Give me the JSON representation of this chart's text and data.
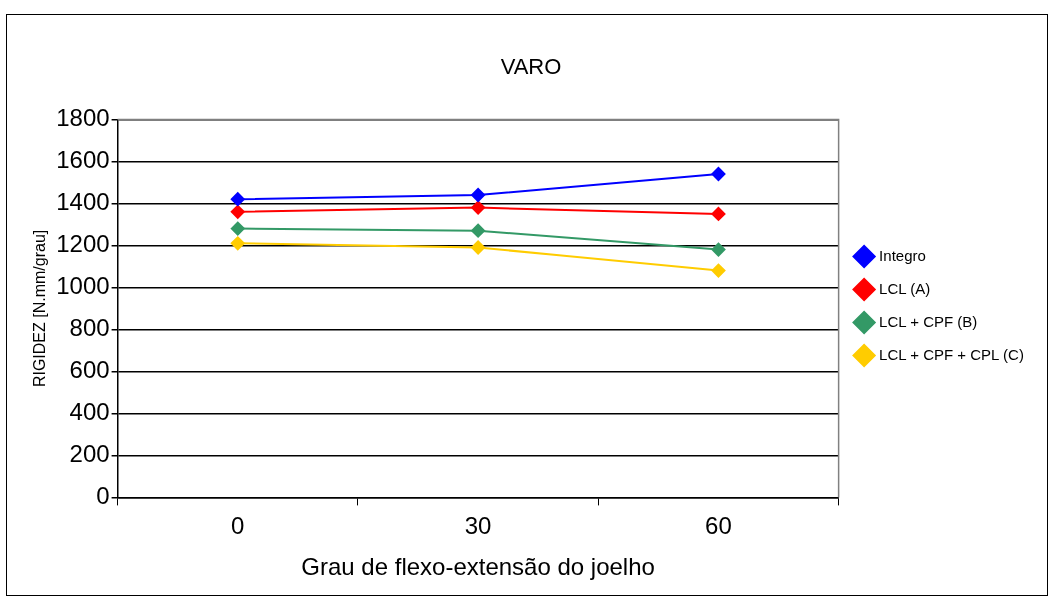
{
  "chart_data": {
    "type": "line",
    "title": "VARO",
    "xlabel": "Grau de flexo-extensão do joelho",
    "ylabel": "RIGIDEZ [N.mm/grau]",
    "categories": [
      "0",
      "30",
      "60"
    ],
    "series": [
      {
        "name": "Integro",
        "color": "#0000ff",
        "values": [
          1420,
          1440,
          1540
        ]
      },
      {
        "name": "LCL (A)",
        "color": "#ff0000",
        "values": [
          1360,
          1380,
          1350
        ]
      },
      {
        "name": "LCL + CPF (B)",
        "color": "#339966",
        "values": [
          1280,
          1270,
          1180
        ]
      },
      {
        "name": "LCL + CPF + CPL (C)",
        "color": "#ffcc00",
        "values": [
          1210,
          1190,
          1080
        ]
      }
    ],
    "ylim": [
      0,
      1800
    ],
    "yticks": [
      0,
      200,
      400,
      600,
      800,
      1000,
      1200,
      1400,
      1600,
      1800
    ],
    "grid": "y",
    "legend": "right",
    "marker": "diamond",
    "line_style": "solid"
  }
}
